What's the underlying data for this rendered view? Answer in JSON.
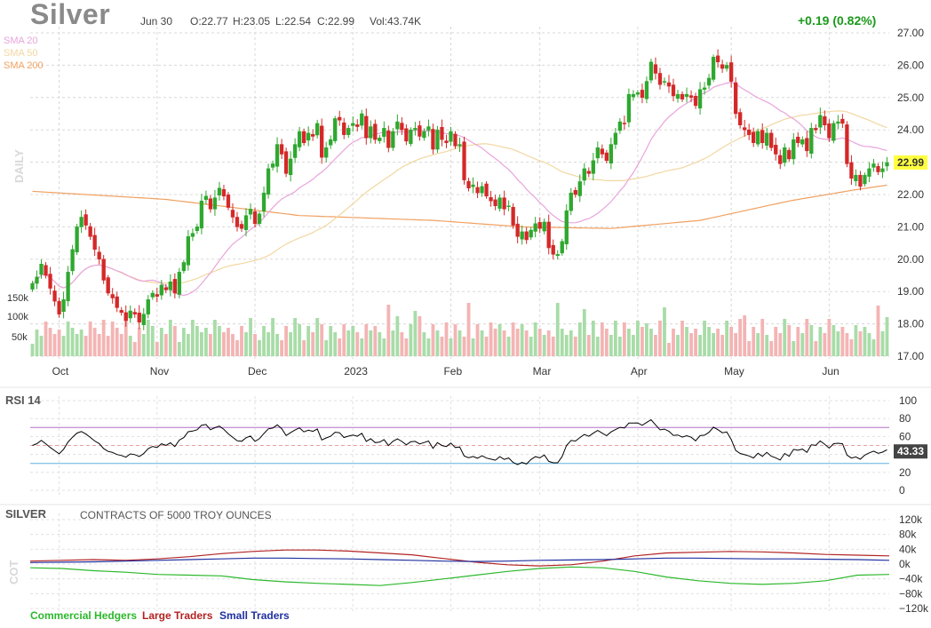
{
  "header": {
    "title": "Silver",
    "date": "Jun 30",
    "open": "O:22.77",
    "high": "H:23.05",
    "low": "L:22.54",
    "close": "C:22.99",
    "volume": "Vol:43.74K",
    "change": "+0.19 (0.82%)"
  },
  "sma_legend": [
    {
      "label": "SMA 20",
      "color": "#e8a4dc"
    },
    {
      "label": "SMA 50",
      "color": "#f2d7a0"
    },
    {
      "label": "SMA 200",
      "color": "#f0a060"
    }
  ],
  "colors": {
    "up": "#2ea82e",
    "down": "#d42828",
    "vol_up": "#a8dca8",
    "vol_down": "#f4b4b4",
    "rsi": "#000000",
    "rsi_over": "#b070c8",
    "rsi_under": "#60b0e0",
    "commercial": "#2cb82c",
    "large": "#b22222",
    "small": "#2030a0",
    "last_badge": "#ffff40"
  },
  "chart_data": [
    {
      "type": "candlestick",
      "panel": "price",
      "side_label": "DAILY",
      "y_ticks": [
        "27.00",
        "26.00",
        "25.00",
        "24.00",
        "23.00",
        "22.00",
        "21.00",
        "20.00",
        "19.00",
        "18.00",
        "17.00"
      ],
      "ylim": [
        17,
        27
      ],
      "last_value": "22.99",
      "x_ticks": [
        "Oct",
        "Nov",
        "Dec",
        "2023",
        "Feb",
        "Mar",
        "Apr",
        "May",
        "Jun"
      ],
      "volume_ticks": [
        "150k",
        "100k",
        "50k"
      ],
      "close": [
        19.25,
        19.45,
        19.85,
        19.5,
        19.1,
        18.7,
        18.3,
        18.75,
        19.6,
        20.3,
        21.0,
        21.3,
        21.05,
        20.7,
        20.3,
        20.0,
        19.35,
        18.95,
        18.8,
        18.5,
        18.35,
        18.1,
        18.4,
        18.3,
        18.05,
        18.3,
        18.75,
        18.95,
        18.85,
        19.2,
        19.05,
        19.3,
        18.95,
        19.6,
        19.9,
        20.7,
        20.8,
        21.0,
        21.8,
        21.95,
        21.55,
        21.9,
        22.2,
        21.95,
        21.6,
        21.3,
        21.0,
        20.95,
        21.35,
        21.55,
        21.1,
        21.4,
        22.05,
        22.8,
        22.95,
        23.55,
        23.25,
        22.65,
        23.1,
        23.55,
        23.95,
        23.6,
        23.9,
        23.8,
        24.2,
        23.15,
        23.45,
        23.7,
        24.35,
        24.3,
        23.85,
        24.05,
        24.2,
        24.1,
        24.5,
        23.75,
        24.1,
        23.7,
        23.75,
        24.05,
        23.45,
        23.95,
        24.25,
        24.0,
        23.65,
        24.0,
        24.05,
        23.8,
        23.95,
        24.1,
        23.4,
        24.0,
        23.7,
        23.6,
        23.95,
        23.5,
        23.55,
        22.45,
        22.2,
        22.3,
        22.05,
        22.25,
        21.95,
        21.8,
        21.65,
        21.9,
        21.55,
        21.65,
        21.05,
        20.7,
        20.85,
        20.6,
        20.9,
        21.1,
        20.95,
        21.15,
        20.35,
        20.15,
        20.15,
        20.55,
        21.5,
        22.05,
        22.0,
        22.4,
        22.8,
        22.65,
        23.05,
        23.45,
        23.25,
        23.05,
        23.55,
        23.9,
        24.25,
        24.2,
        25.1,
        25.1,
        25.15,
        25.0,
        25.5,
        26.1,
        25.75,
        25.4,
        25.5,
        25.35,
        25.05,
        25.1,
        24.95,
        25.1,
        25.0,
        24.75,
        25.25,
        25.3,
        25.6,
        26.25,
        26.1,
        25.9,
        26.0,
        25.5,
        24.5,
        24.15,
        24.0,
        23.85,
        23.6,
        23.95,
        23.6,
        23.9,
        23.45,
        23.25,
        22.95,
        23.45,
        23.1,
        23.7,
        23.6,
        23.7,
        23.35,
        24.05,
        24.0,
        24.45,
        24.15,
        23.75,
        24.2,
        24.25,
        24.2,
        22.95,
        22.5,
        22.6,
        22.25,
        22.6,
        22.8,
        22.95,
        22.7,
        22.8,
        22.99
      ],
      "note": "close prices per session; open/high/low reconstructed visually around closes"
    },
    {
      "type": "line",
      "panel": "rsi",
      "label": "RSI 14",
      "y_ticks": [
        "100",
        "80",
        "60",
        "40",
        "20",
        "0"
      ],
      "ylim": [
        0,
        100
      ],
      "overbought": 70,
      "oversold": 30,
      "last_value": "43.33"
    },
    {
      "type": "line",
      "panel": "cot",
      "label": "SILVER",
      "subtitle": "CONTRACTS OF 5000 TROY OUNCES",
      "side_label": "COT",
      "y_ticks": [
        "120k",
        "80k",
        "40k",
        "0k",
        "−40k",
        "−80k",
        "−120k"
      ],
      "ylim": [
        -120000,
        120000
      ],
      "series": [
        {
          "name": "Commercial Hedgers",
          "values": [
            -10000,
            -12000,
            -18000,
            -22000,
            -28000,
            -30000,
            -32000,
            -42000,
            -48000,
            -52000,
            -55000,
            -58000,
            -50000,
            -40000,
            -30000,
            -20000,
            -12000,
            -8000,
            -10000,
            -20000,
            -35000,
            -45000,
            -52000,
            -55000,
            -52000,
            -45000,
            -30000,
            -28000
          ]
        },
        {
          "name": "Large Traders",
          "values": [
            8000,
            10000,
            12000,
            10000,
            14000,
            20000,
            28000,
            34000,
            38000,
            38000,
            35000,
            30000,
            25000,
            15000,
            5000,
            -2000,
            -5000,
            -2000,
            8000,
            22000,
            30000,
            32000,
            34000,
            33000,
            30000,
            26000,
            24000,
            22000
          ]
        },
        {
          "name": "Small Traders",
          "values": [
            4000,
            5000,
            6000,
            8000,
            10000,
            12000,
            14000,
            16000,
            16000,
            15000,
            14000,
            12000,
            10000,
            8000,
            7000,
            8000,
            10000,
            11000,
            12000,
            14000,
            16000,
            16000,
            15000,
            14000,
            14000,
            13000,
            12000,
            10000
          ]
        }
      ]
    }
  ]
}
